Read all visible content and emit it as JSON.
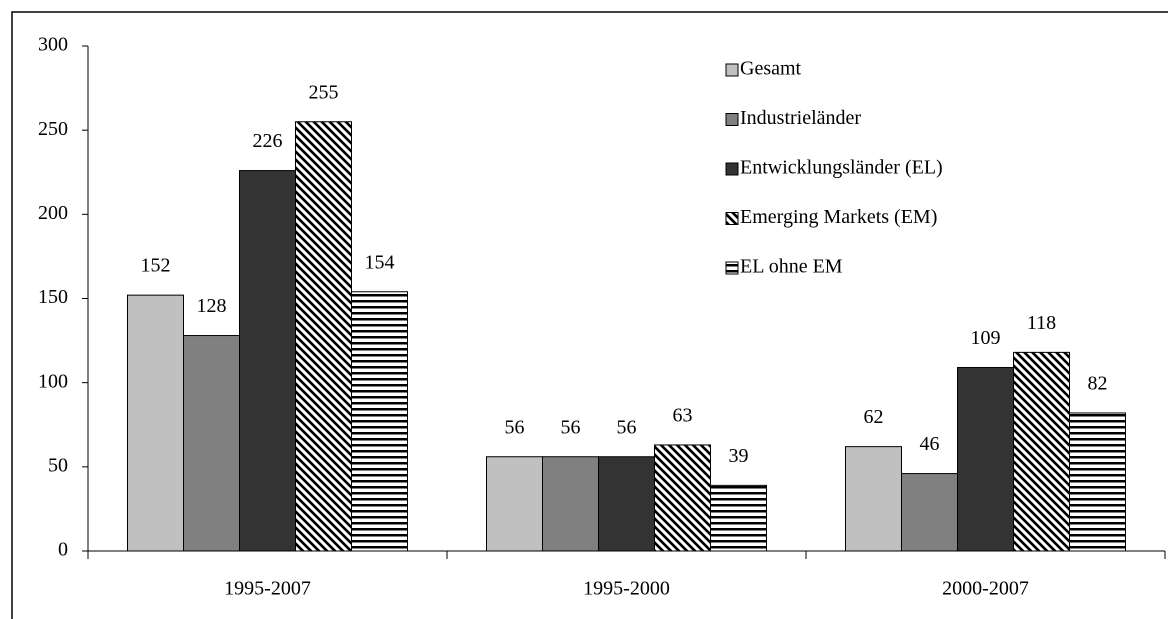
{
  "chart_data": {
    "type": "bar",
    "categories": [
      "1995-2007",
      "1995-2000",
      "2000-2007"
    ],
    "series": [
      {
        "name": "Gesamt",
        "color": "#c0c0c0",
        "pattern": "solid",
        "values": [
          152,
          56,
          62
        ]
      },
      {
        "name": "Industrieländer",
        "color": "#808080",
        "pattern": "solid",
        "values": [
          128,
          56,
          46
        ]
      },
      {
        "name": "Entwicklungsländer (EL)",
        "color": "#333333",
        "pattern": "solid",
        "values": [
          226,
          56,
          109
        ]
      },
      {
        "name": "Emerging Markets (EM)",
        "color": "#000000",
        "pattern": "diagonal",
        "values": [
          255,
          63,
          118
        ]
      },
      {
        "name": "EL ohne EM",
        "color": "#000000",
        "pattern": "horizontal",
        "values": [
          154,
          39,
          82
        ]
      }
    ],
    "ylim": [
      0,
      300
    ],
    "yticks": [
      0,
      50,
      100,
      150,
      200,
      250,
      300
    ],
    "grid": false,
    "legend": "top-right"
  }
}
